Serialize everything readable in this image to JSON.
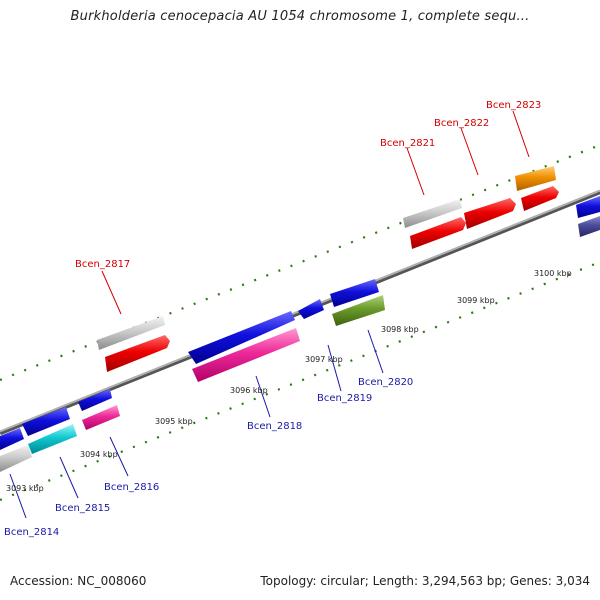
{
  "title": "Burkholderia cenocepacia AU 1054 chromosome 1, complete sequ...",
  "footer": {
    "accession": "Accession: NC_008060",
    "stats": "Topology: circular; Length: 3,294,563 bp; Genes: 3,034"
  },
  "scale_labels": [
    "3093 kbp",
    "3094 kbp",
    "3095 kbp",
    "3096 kbp",
    "3097 kbp",
    "3098 kbp",
    "3099 kbp",
    "3100 kbp"
  ],
  "genes_forward": [
    "Bcen_2817",
    "Bcen_2821",
    "Bcen_2822",
    "Bcen_2823"
  ],
  "genes_reverse": [
    "Bcen_2814",
    "Bcen_2815",
    "Bcen_2816",
    "Bcen_2818",
    "Bcen_2819",
    "Bcen_2820"
  ],
  "colors": {
    "forward_label": "#d40000",
    "reverse_label": "#1a1aa8",
    "backbone": "#8a8a8a",
    "ticks": "#2a7a1a",
    "red": "#ee0000",
    "gray": "#c8c8c8",
    "blue": "#1010dd",
    "magenta": "#ee2a9a",
    "cyan": "#10c8d0",
    "olive": "#6a9a2a",
    "orange": "#f09000",
    "navy": "#4a4a9a"
  }
}
